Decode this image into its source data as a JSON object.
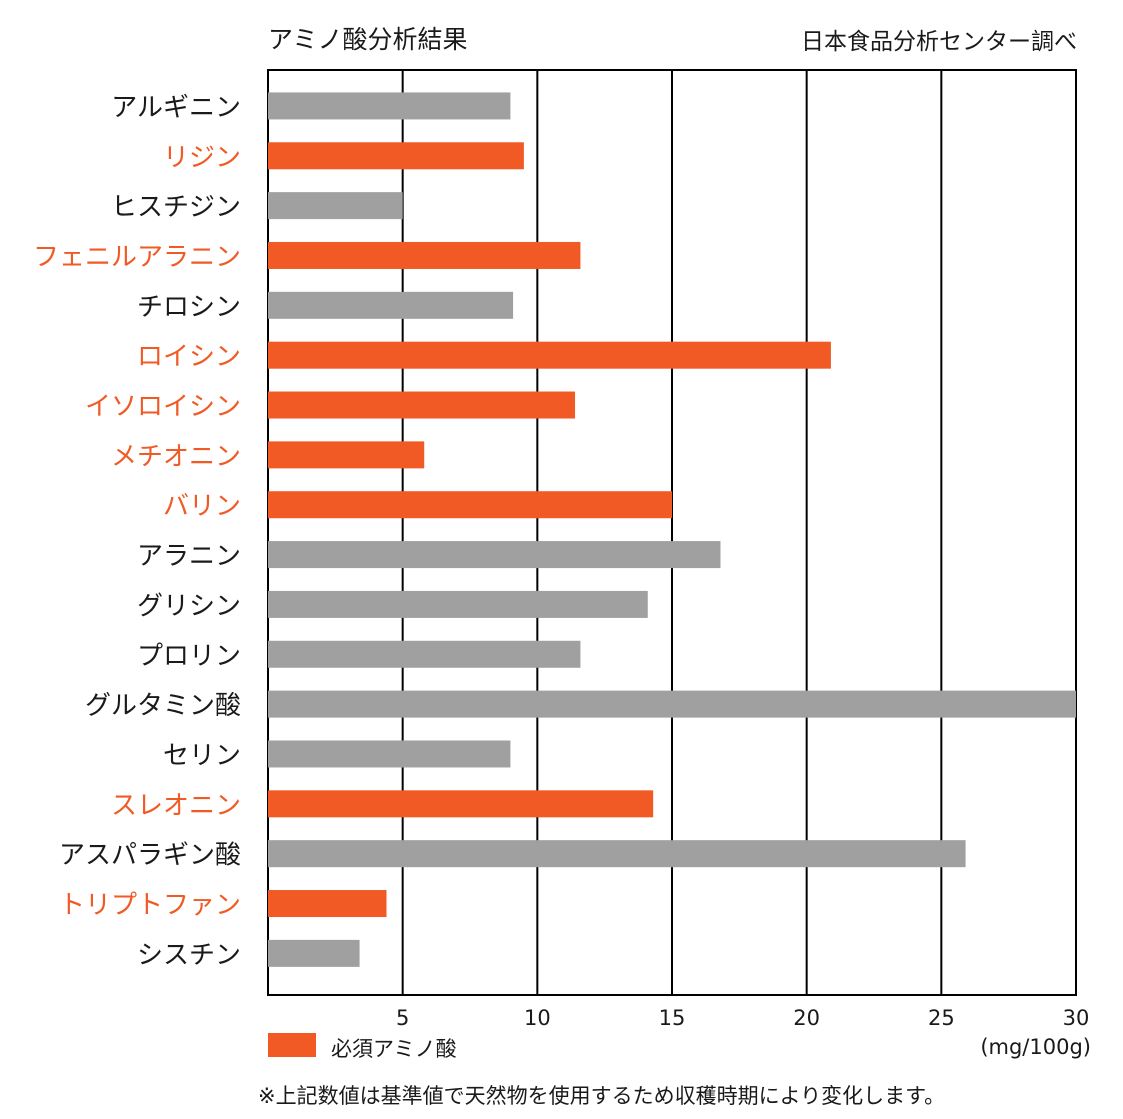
{
  "chart_data": {
    "type": "bar",
    "orientation": "horizontal",
    "title": "アミノ酸分析結果",
    "source": "日本食品分析センター調べ",
    "unit_label": "(mg/100g)",
    "note": "※上記数値は基準値で天然物を使用するため収穫時期により変化します。",
    "xlim": [
      0,
      30
    ],
    "x_ticks": [
      5,
      10,
      15,
      20,
      25,
      30
    ],
    "grid": "vertical",
    "legend": {
      "label": "必須アミノ酸",
      "placement": "bottom-left"
    },
    "colors": {
      "essential": "#f15a24",
      "other": "#a0a0a0",
      "axis": "#000000",
      "essential_text": "#f15a24",
      "text": "#1a1a1a"
    },
    "categories": [
      "アルギニン",
      "リジン",
      "ヒスチジン",
      "フェニルアラニン",
      "チロシン",
      "ロイシン",
      "イソロイシン",
      "メチオニン",
      "バリン",
      "アラニン",
      "グリシン",
      "プロリン",
      "グルタミン酸",
      "セリン",
      "スレオニン",
      "アスパラギン酸",
      "トリプトファン",
      "シスチン"
    ],
    "values": [
      9.0,
      9.5,
      5.0,
      11.6,
      9.1,
      20.9,
      11.4,
      5.8,
      15.0,
      16.8,
      14.1,
      11.6,
      30.0,
      9.0,
      14.3,
      25.9,
      4.4,
      3.4
    ],
    "essential": [
      false,
      true,
      false,
      true,
      false,
      true,
      true,
      true,
      true,
      false,
      false,
      false,
      false,
      false,
      true,
      false,
      true,
      false
    ]
  }
}
